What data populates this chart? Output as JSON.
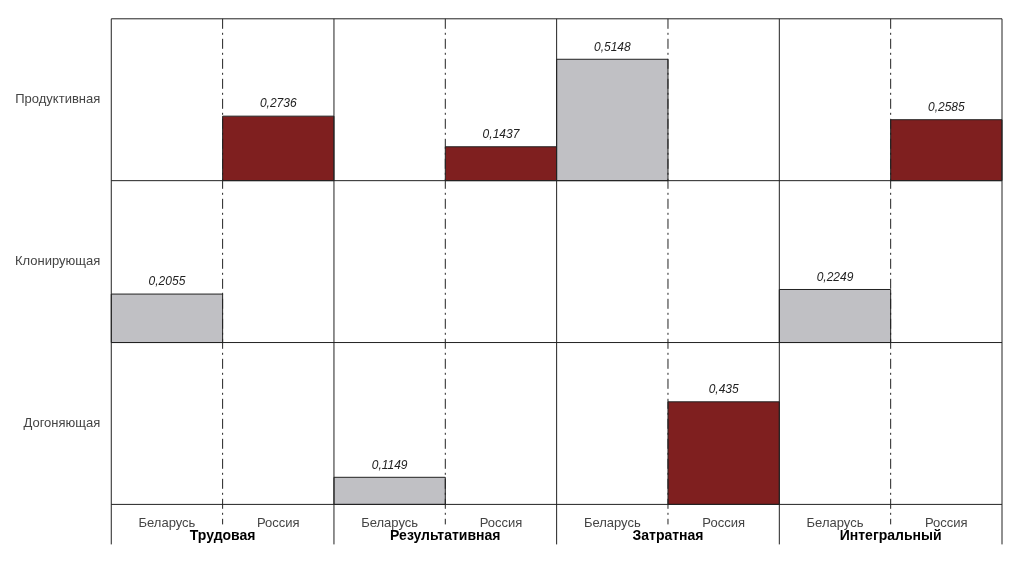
{
  "chart_data": {
    "type": "heatmap",
    "categories": [
      "Беларусь",
      "Россия",
      "Беларусь",
      "Россия",
      "Беларусь",
      "Россия",
      "Беларусь",
      "Россия"
    ],
    "y_categories": [
      "Продуктивная",
      "Клонирующая",
      "Догоняющая"
    ],
    "cells": [
      [
        null,
        0.2736,
        null,
        0.1437,
        0.5148,
        null,
        null,
        0.2585
      ],
      [
        0.2055,
        null,
        null,
        null,
        null,
        null,
        0.2249,
        null
      ],
      [
        null,
        null,
        0.1149,
        null,
        null,
        0.435,
        null,
        null
      ]
    ],
    "cell_labels": [
      [
        null,
        "0,2736",
        null,
        "0,1437",
        "0,5148",
        null,
        null,
        "0,2585"
      ],
      [
        "0,2055",
        null,
        null,
        null,
        null,
        null,
        "0,2249",
        null
      ],
      [
        null,
        null,
        "0,1149",
        null,
        null,
        "0,435",
        null,
        null
      ]
    ],
    "colors": [
      "#c0c0c4",
      "#7f1f1f",
      "#c0c0c4",
      "#7f1f1f",
      "#c0c0c4",
      "#7f1f1f",
      "#c0c0c4",
      "#7f1f1f"
    ],
    "annotations": [
      "Трудовая",
      "Результативная",
      "Затратная",
      "Интегральный"
    ]
  }
}
